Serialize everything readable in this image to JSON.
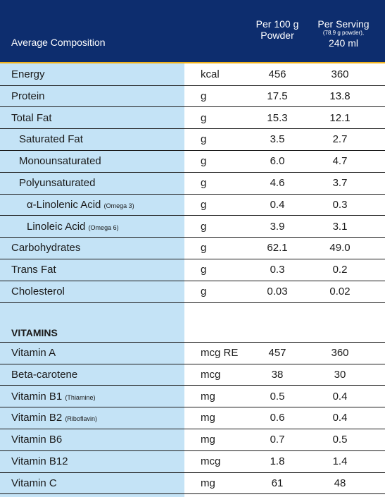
{
  "header": {
    "label": "Average Composition",
    "col1_line1": "Per 100 g",
    "col1_line2": "Powder",
    "col2_line1": "Per Serving",
    "col2_small": "(78.9 g powder),",
    "col2_line3": "240 ml"
  },
  "composition_rows": [
    {
      "name": "Energy",
      "sub": "",
      "unit": "kcal",
      "v100": "456",
      "vserv": "360",
      "indent": 0
    },
    {
      "name": "Protein",
      "sub": "",
      "unit": "g",
      "v100": "17.5",
      "vserv": "13.8",
      "indent": 0
    },
    {
      "name": "Total Fat",
      "sub": "",
      "unit": "g",
      "v100": "15.3",
      "vserv": "12.1",
      "indent": 0
    },
    {
      "name": "Saturated Fat",
      "sub": "",
      "unit": "g",
      "v100": "3.5",
      "vserv": "2.7",
      "indent": 1
    },
    {
      "name": "Monounsaturated",
      "sub": "",
      "unit": "g",
      "v100": "6.0",
      "vserv": "4.7",
      "indent": 1
    },
    {
      "name": "Polyunsaturated",
      "sub": "",
      "unit": "g",
      "v100": "4.6",
      "vserv": "3.7",
      "indent": 1
    },
    {
      "name": "α-Linolenic Acid ",
      "sub": "(Omega 3)",
      "unit": "g",
      "v100": "0.4",
      "vserv": "0.3",
      "indent": 2
    },
    {
      "name": "Linoleic Acid ",
      "sub": "(Omega 6)",
      "unit": "g",
      "v100": "3.9",
      "vserv": "3.1",
      "indent": 2
    },
    {
      "name": "Carbohydrates",
      "sub": "",
      "unit": "g",
      "v100": "62.1",
      "vserv": "49.0",
      "indent": 0
    },
    {
      "name": "Trans Fat",
      "sub": "",
      "unit": "g",
      "v100": "0.3",
      "vserv": "0.2",
      "indent": 0
    },
    {
      "name": "Cholesterol",
      "sub": "",
      "unit": "g",
      "v100": "0.03",
      "vserv": "0.02",
      "indent": 0
    }
  ],
  "vitamins_title": "VITAMINS",
  "vitamin_rows": [
    {
      "name": "Vitamin A",
      "sub": "",
      "unit": "mcg RE",
      "v100": "457",
      "vserv": "360"
    },
    {
      "name": "Beta-carotene",
      "sub": "",
      "unit": "mcg",
      "v100": "38",
      "vserv": "30"
    },
    {
      "name": "Vitamin B1 ",
      "sub": "(Thiamine)",
      "unit": "mg",
      "v100": "0.5",
      "vserv": "0.4"
    },
    {
      "name": "Vitamin B2 ",
      "sub": "(Riboflavin)",
      "unit": "mg",
      "v100": "0.6",
      "vserv": "0.4"
    },
    {
      "name": "Vitamin B6",
      "sub": "",
      "unit": "mg",
      "v100": "0.7",
      "vserv": "0.5"
    },
    {
      "name": "Vitamin B12",
      "sub": "",
      "unit": "mcg",
      "v100": "1.8",
      "vserv": "1.4"
    },
    {
      "name": "Vitamin C",
      "sub": "",
      "unit": "mg",
      "v100": "61",
      "vserv": "48"
    }
  ],
  "colors": {
    "header_bg": "#0d2d6e",
    "left_col_bg": "#c4e3f6",
    "accent": "#f0b21b"
  }
}
